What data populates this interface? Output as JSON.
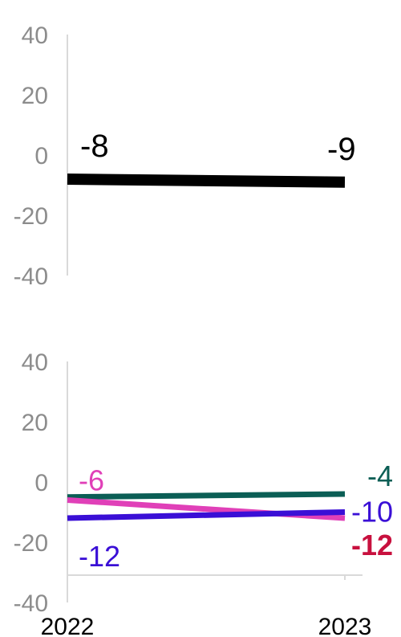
{
  "chart_data": [
    {
      "type": "line",
      "x": [
        "2022",
        "2023"
      ],
      "ylim": [
        -40,
        40
      ],
      "yticks": [
        "40",
        "20",
        "0",
        "-20",
        "-40"
      ],
      "series": [
        {
          "values": [
            -8,
            -9
          ],
          "color": "#000000",
          "labels": [
            "-8",
            "-9"
          ]
        }
      ]
    },
    {
      "type": "line",
      "x": [
        "2022",
        "2023"
      ],
      "ylim": [
        -40,
        40
      ],
      "yticks": [
        "40",
        "20",
        "0",
        "-20",
        "-40"
      ],
      "series": [
        {
          "values": [
            -5,
            -4
          ],
          "color": "#0b5e55",
          "labels": [
            "",
            "-4"
          ]
        },
        {
          "values": [
            -6,
            -12
          ],
          "color": "#e040b8",
          "labels": [
            "-6",
            "-12"
          ],
          "end_label_color": "#c8103e",
          "end_label_bold": true
        },
        {
          "values": [
            -12,
            -10
          ],
          "color": "#3a0fd6",
          "labels": [
            "-12",
            "-10"
          ]
        }
      ]
    }
  ]
}
